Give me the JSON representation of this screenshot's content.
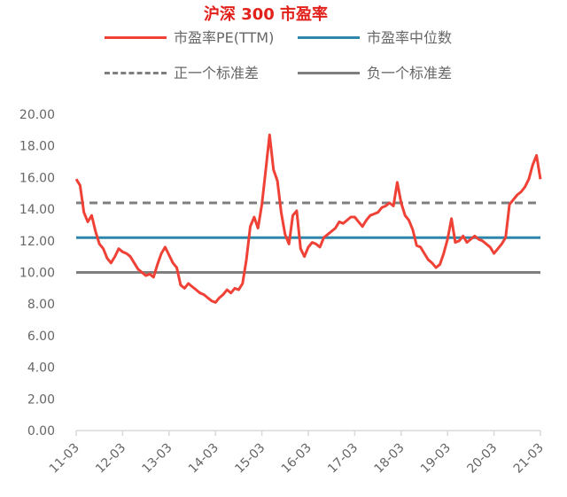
{
  "colors": {
    "title": "#e3211c",
    "pe": "#ef4136",
    "median": "#2e86ab",
    "plus_sd": "#7f7f7f",
    "minus_sd": "#7f7f7f",
    "axis": "#d9d9d9",
    "text": "#666666"
  },
  "chart_data": {
    "type": "line",
    "title": "沪深 300 市盈率",
    "xlabel": "",
    "ylabel": "",
    "ylim": [
      0,
      20
    ],
    "yticks": [
      "0.00",
      "2.00",
      "4.00",
      "6.00",
      "8.00",
      "10.00",
      "12.00",
      "14.00",
      "16.00",
      "18.00",
      "20.00"
    ],
    "xticks": [
      "11-03",
      "12-03",
      "13-03",
      "14-03",
      "15-03",
      "16-03",
      "17-03",
      "18-03",
      "19-03",
      "20-03",
      "21-03"
    ],
    "legend": {
      "placement": "top"
    },
    "grid": false,
    "series": [
      {
        "name": "市盈率PE(TTM)",
        "style": "solid",
        "x": [
          "11-03",
          "11-04",
          "11-05",
          "11-06",
          "11-07",
          "11-08",
          "11-09",
          "11-10",
          "11-11",
          "11-12",
          "12-01",
          "12-02",
          "12-03",
          "12-04",
          "12-05",
          "12-06",
          "12-07",
          "12-08",
          "12-09",
          "12-10",
          "12-11",
          "12-12",
          "13-01",
          "13-02",
          "13-03",
          "13-04",
          "13-05",
          "13-06",
          "13-07",
          "13-08",
          "13-09",
          "13-10",
          "13-11",
          "13-12",
          "14-01",
          "14-02",
          "14-03",
          "14-04",
          "14-05",
          "14-06",
          "14-07",
          "14-08",
          "14-09",
          "14-10",
          "14-11",
          "14-12",
          "15-01",
          "15-02",
          "15-03",
          "15-04",
          "15-05",
          "15-06",
          "15-07",
          "15-08",
          "15-09",
          "15-10",
          "15-11",
          "15-12",
          "16-01",
          "16-02",
          "16-03",
          "16-04",
          "16-05",
          "16-06",
          "16-07",
          "16-08",
          "16-09",
          "16-10",
          "16-11",
          "16-12",
          "17-01",
          "17-02",
          "17-03",
          "17-04",
          "17-05",
          "17-06",
          "17-07",
          "17-08",
          "17-09",
          "17-10",
          "17-11",
          "17-12",
          "18-01",
          "18-02",
          "18-03",
          "18-04",
          "18-05",
          "18-06",
          "18-07",
          "18-08",
          "18-09",
          "18-10",
          "18-11",
          "18-12",
          "19-01",
          "19-02",
          "19-03",
          "19-04",
          "19-05",
          "19-06",
          "19-07",
          "19-08",
          "19-09",
          "19-10",
          "19-11",
          "19-12",
          "20-01",
          "20-02",
          "20-03",
          "20-04",
          "20-05",
          "20-06",
          "20-07",
          "20-08",
          "20-09",
          "20-10",
          "20-11",
          "20-12",
          "21-01",
          "21-02",
          "21-03"
        ],
        "values": [
          15.9,
          15.5,
          13.8,
          13.2,
          13.6,
          12.6,
          11.8,
          11.5,
          10.9,
          10.6,
          11.0,
          11.5,
          11.3,
          11.2,
          11.0,
          10.6,
          10.2,
          10.0,
          9.8,
          9.9,
          9.7,
          10.5,
          11.2,
          11.6,
          11.1,
          10.6,
          10.3,
          9.2,
          9.0,
          9.3,
          9.1,
          8.9,
          8.7,
          8.6,
          8.4,
          8.2,
          8.1,
          8.4,
          8.6,
          8.9,
          8.7,
          9.0,
          8.9,
          9.3,
          10.8,
          12.9,
          13.5,
          12.8,
          14.3,
          16.5,
          18.7,
          16.5,
          15.8,
          13.8,
          12.4,
          11.8,
          13.6,
          13.9,
          11.5,
          11.0,
          11.6,
          11.9,
          11.8,
          11.6,
          12.2,
          12.4,
          12.6,
          12.8,
          13.2,
          13.1,
          13.3,
          13.5,
          13.5,
          13.2,
          12.9,
          13.3,
          13.6,
          13.7,
          13.8,
          14.1,
          14.2,
          14.4,
          14.2,
          15.7,
          14.4,
          13.6,
          13.3,
          12.7,
          11.7,
          11.6,
          11.2,
          10.8,
          10.6,
          10.3,
          10.5,
          11.2,
          12.1,
          13.4,
          11.9,
          12.0,
          12.3,
          11.9,
          12.1,
          12.3,
          12.1,
          12.0,
          11.8,
          11.6,
          11.2,
          11.5,
          11.8,
          12.2,
          14.3,
          14.6,
          14.9,
          15.1,
          15.4,
          15.9,
          16.8,
          17.4,
          15.9
        ]
      },
      {
        "name": "市盈率中位数",
        "style": "solid",
        "value": 12.2
      },
      {
        "name": "正一个标准差",
        "style": "dashed",
        "value": 14.4
      },
      {
        "name": "负一个标准差",
        "style": "solid",
        "value": 10.0
      }
    ]
  }
}
